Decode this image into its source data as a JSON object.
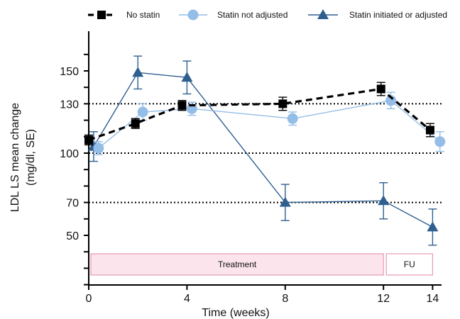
{
  "chart_data": {
    "type": "line",
    "ylabel_line1": "LDL LS mean change",
    "ylabel_line2": "(mg/dl, SE)",
    "xlabel": "Time (weeks)",
    "xlim": [
      0,
      14.5
    ],
    "ylim": [
      30,
      165
    ],
    "x_ticks": [
      0,
      4,
      8,
      12,
      14
    ],
    "y_ticks": [
      50,
      70,
      100,
      130,
      150
    ],
    "y_minor_ticks": [
      110,
      140,
      160,
      20,
      30,
      40,
      60,
      80,
      90,
      120
    ],
    "reference_lines": [
      70,
      100,
      130
    ],
    "series": [
      {
        "name": "No statin",
        "color": "#000000",
        "marker": "square",
        "line_style": "dashed",
        "points": [
          {
            "x": 0,
            "y": 108,
            "err": 3
          },
          {
            "x": 1.9,
            "y": 118,
            "err": 3
          },
          {
            "x": 3.8,
            "y": 129,
            "err": 3
          },
          {
            "x": 7.9,
            "y": 130,
            "err": 4
          },
          {
            "x": 11.9,
            "y": 139,
            "err": 4
          },
          {
            "x": 13.9,
            "y": 114,
            "err": 4
          }
        ]
      },
      {
        "name": "Statin not adjusted",
        "color": "#94bde8",
        "marker": "circle",
        "line_style": "solid",
        "points": [
          {
            "x": 0.4,
            "y": 103,
            "err": 4
          },
          {
            "x": 2.2,
            "y": 125,
            "err": 5
          },
          {
            "x": 4.2,
            "y": 127,
            "err": 4
          },
          {
            "x": 8.3,
            "y": 121,
            "err": 4
          },
          {
            "x": 12.3,
            "y": 132,
            "err": 5
          },
          {
            "x": 14.3,
            "y": 107,
            "err": 6
          }
        ]
      },
      {
        "name": "Statin initiated or adjusted",
        "color": "#2e5f8f",
        "marker": "triangle",
        "line_style": "solid",
        "points": [
          {
            "x": 0.2,
            "y": 104,
            "err": 9
          },
          {
            "x": 2.0,
            "y": 149,
            "err": 10
          },
          {
            "x": 4.0,
            "y": 146,
            "err": 10
          },
          {
            "x": 8.0,
            "y": 70,
            "err": 11
          },
          {
            "x": 12.0,
            "y": 71,
            "err": 11
          },
          {
            "x": 14.0,
            "y": 55,
            "err": 11
          }
        ]
      }
    ],
    "bands": [
      {
        "label": "Treatment",
        "x_start": 0,
        "x_end": 12,
        "fill": "#fbe4ec",
        "stroke": "#e79ab8"
      },
      {
        "label": "FU",
        "x_start": 12,
        "x_end": 14,
        "fill": "#ffffff",
        "stroke": "#e79ab8"
      }
    ],
    "legend": {
      "position": "top",
      "entries": [
        "No statin",
        "Statin not adjusted",
        "Statin initiated or adjusted"
      ]
    }
  }
}
